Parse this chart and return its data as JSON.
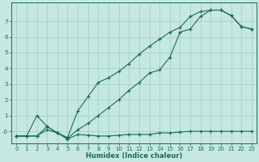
{
  "line1_x": [
    0,
    1,
    2,
    3,
    4,
    5,
    6,
    7,
    8,
    9,
    10,
    11,
    12,
    13,
    14,
    15,
    16,
    17,
    18,
    19,
    20,
    21,
    22,
    23
  ],
  "line1_y": [
    -0.3,
    -0.3,
    1.0,
    0.3,
    -0.1,
    -0.4,
    1.3,
    2.2,
    3.1,
    3.4,
    3.8,
    4.3,
    4.9,
    5.4,
    5.85,
    6.3,
    6.6,
    7.3,
    7.6,
    7.7,
    7.7,
    7.35,
    6.65,
    6.5
  ],
  "line2_x": [
    0,
    1,
    2,
    3,
    4,
    5,
    6,
    7,
    8,
    9,
    10,
    11,
    12,
    13,
    14,
    15,
    16,
    17,
    18,
    19,
    20,
    21,
    22,
    23
  ],
  "line2_y": [
    -0.3,
    -0.3,
    -0.3,
    0.3,
    -0.1,
    -0.45,
    0.1,
    0.5,
    1.0,
    1.5,
    2.0,
    2.6,
    3.1,
    3.7,
    3.9,
    4.7,
    6.3,
    6.5,
    7.3,
    7.7,
    7.7,
    7.35,
    6.65,
    6.5
  ],
  "line3_x": [
    0,
    1,
    2,
    3,
    4,
    5,
    6,
    7,
    8,
    9,
    10,
    11,
    12,
    13,
    14,
    15,
    16,
    17,
    18,
    19,
    20,
    21,
    22,
    23
  ],
  "line3_y": [
    -0.3,
    -0.3,
    -0.3,
    0.1,
    -0.1,
    -0.5,
    -0.2,
    -0.25,
    -0.3,
    -0.3,
    -0.25,
    -0.2,
    -0.2,
    -0.2,
    -0.1,
    -0.1,
    -0.05,
    0.0,
    0.0,
    0.0,
    0.0,
    0.0,
    0.0,
    0.0
  ],
  "line_color": "#1a6b5a",
  "bg_color": "#c5e8e0",
  "grid_color": "#9fcec5",
  "xlabel": "Humidex (Indice chaleur)",
  "xlim": [
    -0.5,
    23.5
  ],
  "ylim": [
    -0.75,
    8.2
  ],
  "yticks": [
    0,
    1,
    2,
    3,
    4,
    5,
    6,
    7
  ],
  "xticks": [
    0,
    1,
    2,
    3,
    4,
    5,
    6,
    7,
    8,
    9,
    10,
    11,
    12,
    13,
    14,
    15,
    16,
    17,
    18,
    19,
    20,
    21,
    22,
    23
  ]
}
